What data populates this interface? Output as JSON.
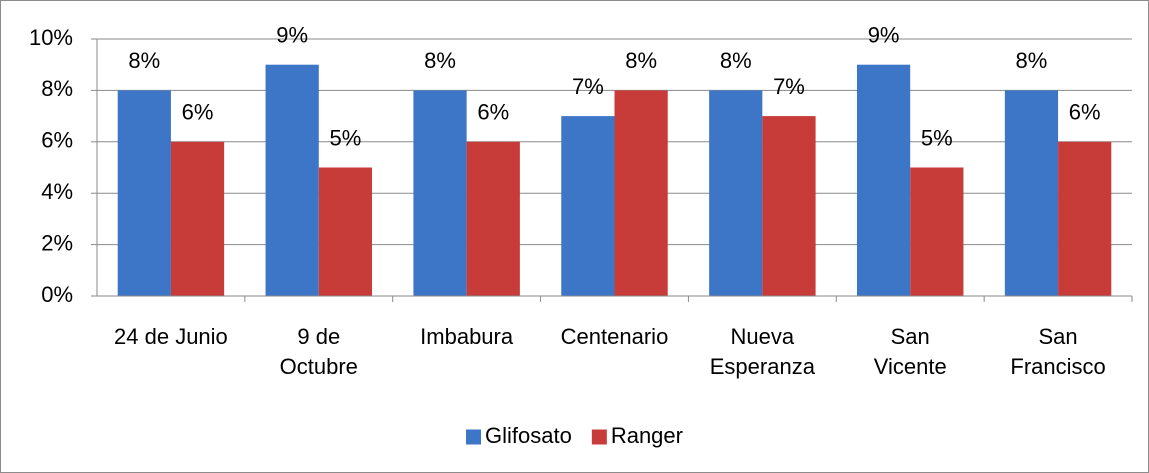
{
  "chart_data": {
    "type": "bar",
    "categories": [
      "24 de Junio",
      "9 de Octubre",
      "Imbabura",
      "Centenario",
      "Nueva Esperanza",
      "San Vicente",
      "San Francisco"
    ],
    "series": [
      {
        "name": "Glifosato",
        "color": "#3d76c6",
        "values": [
          8,
          9,
          8,
          7,
          8,
          9,
          8
        ],
        "value_labels": [
          "8%",
          "9%",
          "8%",
          "7%",
          "8%",
          "9%",
          "8%"
        ]
      },
      {
        "name": "Ranger",
        "color": "#c73b38",
        "values": [
          6,
          5,
          6,
          8,
          7,
          5,
          6
        ],
        "value_labels": [
          "6%",
          "5%",
          "6%",
          "8%",
          "7%",
          "5%",
          "6%"
        ]
      }
    ],
    "ylim": [
      0,
      10
    ],
    "yticks": [
      {
        "value": 0,
        "label": "0%"
      },
      {
        "value": 2,
        "label": "2%"
      },
      {
        "value": 4,
        "label": "4%"
      },
      {
        "value": 6,
        "label": "6%"
      },
      {
        "value": 8,
        "label": "8%"
      },
      {
        "value": 10,
        "label": "10%"
      }
    ],
    "grid": true,
    "legend": "bottom"
  }
}
